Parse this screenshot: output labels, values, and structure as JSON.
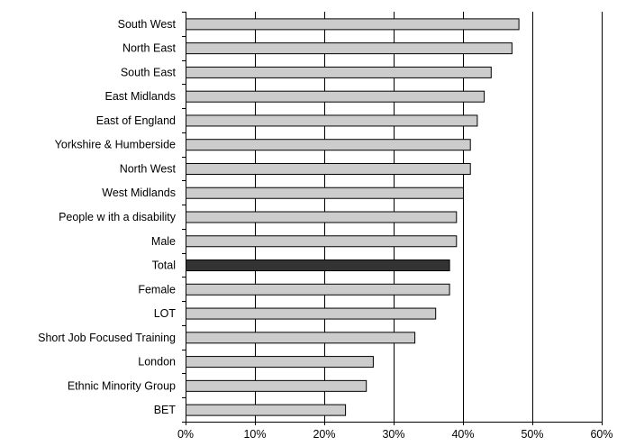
{
  "chart_data": {
    "type": "bar",
    "orientation": "horizontal",
    "title": "",
    "xlabel": "",
    "ylabel": "",
    "categories": [
      "South West",
      "North East",
      "South East",
      "East Midlands",
      "East of England",
      "Yorkshire & Humberside",
      "North West",
      "West Midlands",
      "People w ith a disability",
      "Male",
      "Total",
      "Female",
      "LOT",
      "Short Job Focused Training",
      "London",
      "Ethnic Minority Group",
      "BET"
    ],
    "values": [
      48,
      47,
      44,
      43,
      42,
      41,
      41,
      40,
      39,
      39,
      38,
      38,
      36,
      33,
      27,
      26,
      23
    ],
    "highlight_category": "Total",
    "xlim": [
      0,
      60
    ],
    "x_ticks": [
      "0%",
      "10%",
      "20%",
      "30%",
      "40%",
      "50%",
      "60%"
    ],
    "grid": "vertical",
    "legend": "none",
    "colors": {
      "bar": "#cccccc",
      "highlight": "#333333",
      "bar_stroke": "#000000",
      "grid": "#000000"
    }
  }
}
